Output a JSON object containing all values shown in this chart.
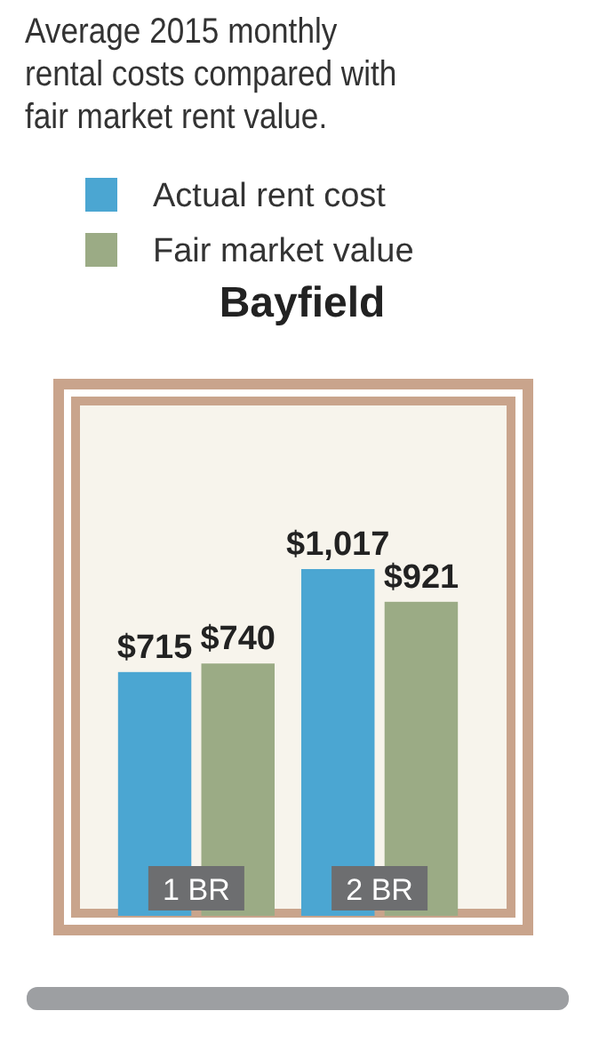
{
  "chart_data": {
    "type": "bar",
    "title": "Bayfield",
    "subtitle": "Average 2015 monthly rental costs compared with fair market rent value.",
    "categories": [
      "1 BR",
      "2 BR"
    ],
    "series": [
      {
        "name": "Actual rent cost",
        "color": "#4ba6d2",
        "values": [
          715,
          1017
        ],
        "value_labels": [
          "$715",
          "$1,017"
        ]
      },
      {
        "name": "Fair market value",
        "color": "#9bab85",
        "values": [
          740,
          921
        ],
        "value_labels": [
          "$740",
          "$921"
        ]
      }
    ],
    "legend": "top left"
  }
}
